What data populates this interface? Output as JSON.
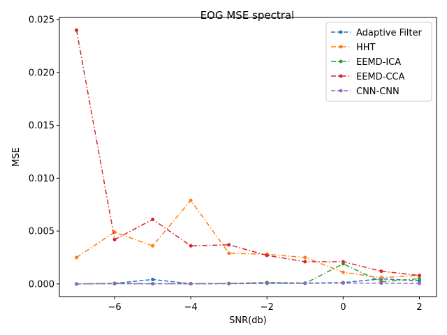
{
  "chart_data": {
    "type": "line",
    "title": "EOG MSE spectral",
    "xlabel": "SNR(db)",
    "ylabel": "MSE",
    "xlim": [
      -7.45,
      2.45
    ],
    "ylim": [
      -0.0012,
      0.0252
    ],
    "xticks": [
      -6,
      -4,
      -2,
      0,
      2
    ],
    "xtick_labels": [
      "−6",
      "−4",
      "−2",
      "0",
      "2"
    ],
    "yticks": [
      0.0,
      0.005,
      0.01,
      0.015,
      0.02,
      0.025
    ],
    "ytick_labels": [
      "0.000",
      "0.005",
      "0.010",
      "0.015",
      "0.020",
      "0.025"
    ],
    "legend_position": "top-right",
    "x": [
      -7,
      -6,
      -5,
      -4,
      -3,
      -2,
      -1,
      0,
      1,
      2
    ],
    "series": [
      {
        "name": "Adaptive Filter",
        "color": "#1f77b4",
        "dash": "dashed",
        "values": [
          0.0,
          5e-05,
          0.00042,
          2e-05,
          4e-05,
          0.00013,
          8e-05,
          0.00012,
          0.00048,
          0.0003
        ]
      },
      {
        "name": "HHT",
        "color": "#ff7f0e",
        "dash": "dashdot",
        "values": [
          0.0025,
          0.0049,
          0.0036,
          0.0079,
          0.0029,
          0.0028,
          0.0025,
          0.0011,
          0.0006,
          0.0008
        ]
      },
      {
        "name": "EEMD-ICA",
        "color": "#2ca02c",
        "dash": "dashdot",
        "values": [
          0.0,
          5e-05,
          2e-05,
          2e-05,
          4e-05,
          8e-05,
          5e-05,
          0.0019,
          0.0002,
          0.0005
        ]
      },
      {
        "name": "EEMD-CCA",
        "color": "#d62728",
        "dash": "dashdot",
        "values": [
          0.024,
          0.0042,
          0.0061,
          0.0036,
          0.0037,
          0.0027,
          0.0021,
          0.0021,
          0.0012,
          0.0008
        ]
      },
      {
        "name": "CNN-CNN",
        "color": "#9467bd",
        "dash": "dashed",
        "values": [
          0.0,
          2e-05,
          1e-05,
          1e-05,
          2e-05,
          5e-05,
          6e-05,
          8e-05,
          7e-05,
          5e-05
        ]
      }
    ]
  }
}
